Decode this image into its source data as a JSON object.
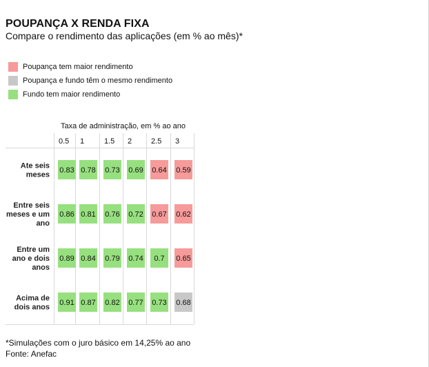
{
  "header": {
    "title": "POUPANÇA X RENDA FIXA",
    "subtitle": "Compare o rendimento das aplicações (em % ao mês)*"
  },
  "legend": {
    "items": [
      {
        "label": "Poupança tem maior rendimento",
        "color": "#f79a9a"
      },
      {
        "label": "Poupança e fundo têm o mesmo rendimento",
        "color": "#c8c8c8"
      },
      {
        "label": "Fundo tem maior rendimento",
        "color": "#97e07f"
      }
    ]
  },
  "footer": {
    "note": "*Simulações com o juro básico em 14,25% ao ano",
    "source": "Fonte: Anefac"
  },
  "chart_data": {
    "type": "heatmap",
    "title": "POUPANÇA X RENDA FIXA",
    "subtitle": "Compare o rendimento das aplicações (em % ao mês)*",
    "xlabel": "Taxa de administração, em % ao ano",
    "columns": [
      "0.5",
      "1",
      "1.5",
      "2",
      "2.5",
      "3"
    ],
    "rows": [
      {
        "label": [
          "Ate seis",
          "meses"
        ],
        "values": [
          "0.83",
          "0.78",
          "0.73",
          "0.69",
          "0.64",
          "0.59"
        ],
        "categories": [
          "fundo",
          "fundo",
          "fundo",
          "fundo",
          "poupanca",
          "poupanca"
        ]
      },
      {
        "label": [
          "Entre seis",
          "meses e um",
          "ano"
        ],
        "values": [
          "0.86",
          "0.81",
          "0.76",
          "0.72",
          "0.67",
          "0.62"
        ],
        "categories": [
          "fundo",
          "fundo",
          "fundo",
          "fundo",
          "poupanca",
          "poupanca"
        ]
      },
      {
        "label": [
          "Entre um",
          "ano e dois",
          "anos"
        ],
        "values": [
          "0.89",
          "0.84",
          "0.79",
          "0.74",
          "0.7",
          "0.65"
        ],
        "categories": [
          "fundo",
          "fundo",
          "fundo",
          "fundo",
          "fundo",
          "poupanca"
        ]
      },
      {
        "label": [
          "Acima de",
          "dois anos"
        ],
        "values": [
          "0.91",
          "0.87",
          "0.82",
          "0.77",
          "0.73",
          "0.68"
        ],
        "categories": [
          "fundo",
          "fundo",
          "fundo",
          "fundo",
          "fundo",
          "igual"
        ]
      }
    ],
    "colors": {
      "poupanca": "#f79a9a",
      "igual": "#c8c8c8",
      "fundo": "#97e07f"
    }
  }
}
